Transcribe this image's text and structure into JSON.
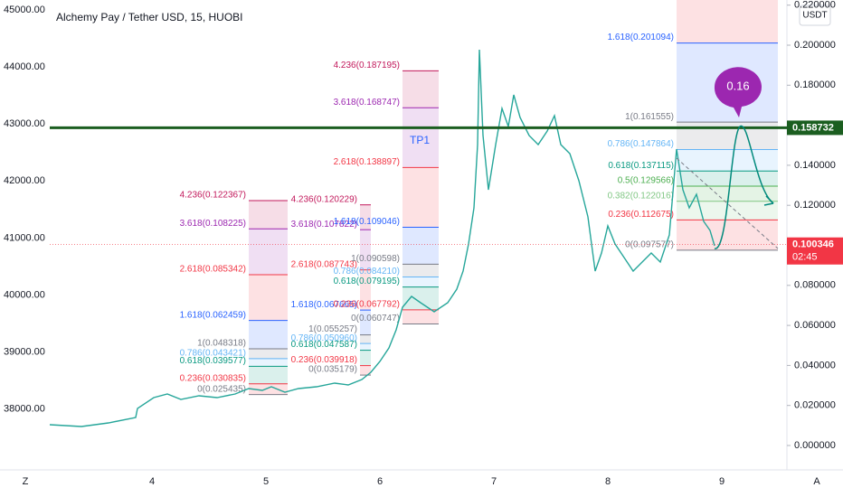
{
  "header": {
    "title": "Alchemy Pay / Tether USD, 15, HUOBI",
    "currency": "USDT"
  },
  "left_axis": [
    "45000.00",
    "44000.00",
    "43000.00",
    "42000.00",
    "41000.00",
    "40000.00",
    "39000.00",
    "38000.00"
  ],
  "right_axis": [
    {
      "value": 0.22,
      "label": "0.220000"
    },
    {
      "value": 0.2,
      "label": "0.200000"
    },
    {
      "value": 0.18,
      "label": "0.180000"
    },
    {
      "value": 0.14,
      "label": "0.140000"
    },
    {
      "value": 0.12,
      "label": "0.120000"
    },
    {
      "value": 0.08,
      "label": "0.080000"
    },
    {
      "value": 0.06,
      "label": "0.060000"
    },
    {
      "value": 0.04,
      "label": "0.040000"
    },
    {
      "value": 0.02,
      "label": "0.020000"
    },
    {
      "value": 0,
      "label": "0.000000"
    }
  ],
  "time_axis": {
    "start": "Z",
    "labels": [
      "4",
      "5",
      "6",
      "7",
      "8",
      "9"
    ],
    "end": "A"
  },
  "price_tags": [
    {
      "value": 0.158732,
      "label": "0.158732",
      "color": "#1b5e20"
    },
    {
      "value": 0.100346,
      "label": "0.100346",
      "countdown": "02:45",
      "color": "#f23645"
    }
  ],
  "annotations": {
    "target_bubble": "0.16",
    "tp_label": "TP1"
  },
  "fibs": [
    {
      "levels": [
        {
          "label": "4.236(0.122367)",
          "price": 0.122367,
          "color": "#c2185b"
        },
        {
          "label": "3.618(0.108225)",
          "price": 0.108225,
          "color": "#9c27b0"
        },
        {
          "label": "2.618(0.085342)",
          "price": 0.085342,
          "color": "#f23645"
        },
        {
          "label": "1.618(0.062459)",
          "price": 0.062459,
          "color": "#2962ff"
        },
        {
          "label": "1(0.048318)",
          "price": 0.048318,
          "color": "#787b86"
        },
        {
          "label": "0.786(0.043421)",
          "price": 0.043421,
          "color": "#64b5f6"
        },
        {
          "label": "0.618(0.039577)",
          "price": 0.039577,
          "color": "#089981"
        },
        {
          "label": "0.236(0.030835)",
          "price": 0.030835,
          "color": "#f23645"
        },
        {
          "label": "0(0.025435)",
          "price": 0.025435,
          "color": "#787b86"
        }
      ]
    },
    {
      "levels": [
        {
          "label": "4.236(0.120229)",
          "price": 0.120229,
          "color": "#c2185b"
        },
        {
          "label": "3.618(0.107822)",
          "price": 0.107822,
          "color": "#9c27b0"
        },
        {
          "label": "2.618(0.087743)",
          "price": 0.087743,
          "color": "#f23645"
        },
        {
          "label": "1.618(0.067665)",
          "price": 0.067665,
          "color": "#2962ff"
        },
        {
          "label": "1(0.055257)",
          "price": 0.055257,
          "color": "#787b86"
        },
        {
          "label": "0.786(0.050960)",
          "price": 0.05096,
          "color": "#64b5f6"
        },
        {
          "label": "0.618(0.047587)",
          "price": 0.047587,
          "color": "#089981"
        },
        {
          "label": "0.236(0.039918)",
          "price": 0.039918,
          "color": "#f23645"
        },
        {
          "label": "0(0.035179)",
          "price": 0.035179,
          "color": "#787b86"
        }
      ]
    },
    {
      "levels": [
        {
          "label": "4.236(0.187195)",
          "price": 0.187195,
          "color": "#c2185b"
        },
        {
          "label": "3.618(0.168747)",
          "price": 0.168747,
          "color": "#9c27b0"
        },
        {
          "label": "2.618(0.138897)",
          "price": 0.138897,
          "color": "#f23645"
        },
        {
          "label": "1.618(0.109046)",
          "price": 0.109046,
          "color": "#2962ff"
        },
        {
          "label": "1(0.090598)",
          "price": 0.090598,
          "color": "#787b86"
        },
        {
          "label": "0.786(0.084210)",
          "price": 0.08421,
          "color": "#64b5f6"
        },
        {
          "label": "0.618(0.079195)",
          "price": 0.079195,
          "color": "#089981"
        },
        {
          "label": "0.236(0.067792)",
          "price": 0.067792,
          "color": "#f23645"
        },
        {
          "label": "0(0.060747)",
          "price": 0.060747,
          "color": "#787b86"
        }
      ]
    },
    {
      "levels": [
        {
          "label": "1.618(0.201094)",
          "price": 0.201094,
          "color": "#2962ff"
        },
        {
          "label": "1(0.161555)",
          "price": 0.161555,
          "color": "#787b86"
        },
        {
          "label": "0.786(0.147864)",
          "price": 0.147864,
          "color": "#64b5f6"
        },
        {
          "label": "0.618(0.137115)",
          "price": 0.137115,
          "color": "#089981"
        },
        {
          "label": "0.5(0.129566)",
          "price": 0.129566,
          "color": "#4caf50"
        },
        {
          "label": "0.382(0.122016)",
          "price": 0.122016,
          "color": "#81c784"
        },
        {
          "label": "0.236(0.112675)",
          "price": 0.112675,
          "color": "#f23645"
        },
        {
          "label": "0(0.097577)",
          "price": 0.097577,
          "color": "#787b86"
        }
      ]
    }
  ]
}
